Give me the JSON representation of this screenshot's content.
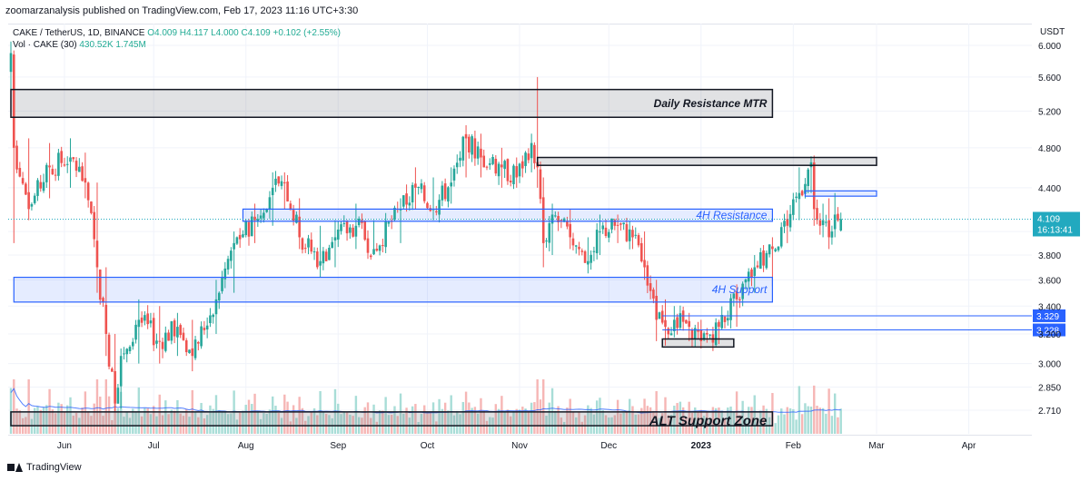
{
  "header": {
    "publisher_line": "zoomarzanalysis published on TradingView.com, Feb 17, 2023 11:16 UTC+3:30"
  },
  "legend": {
    "symbol": "CAKE / TetherUS, 1D, BINANCE",
    "open": "O4.009",
    "high": "H4.117",
    "low": "L4.000",
    "close": "C4.109",
    "change": "+0.102 (+2.55%)",
    "volume_label": "Vol · CAKE (30)",
    "volume_value": "430.52K",
    "volume_ma": "1.745M"
  },
  "footer": {
    "brand": "TradingView"
  },
  "colors": {
    "up": "#26a69a",
    "down": "#ef5350",
    "vol_up": "#a8ddd7",
    "vol_down": "#f6b6b5",
    "zone_blue": "#2962ff",
    "zone_blue_fill": "rgba(41,98,255,0.12)",
    "zone_gray_fill": "rgba(120,123,134,0.22)",
    "vol_ma": "#2962ff",
    "price_tag": "#22a9bf",
    "level_tag": "#2962ff"
  },
  "chart_data": {
    "type": "candlestick",
    "title": "CAKE / TetherUS, 1D, BINANCE",
    "y_axis_unit": "USDT",
    "y_scale": "log",
    "y_ticks": [
      6.0,
      5.6,
      5.2,
      4.8,
      4.4,
      4.0,
      3.8,
      3.6,
      3.4,
      3.2,
      3.0,
      2.85,
      2.71
    ],
    "y_tick_labels": [
      "6.000",
      "5.600",
      "5.200",
      "4.800",
      "4.400",
      "4.000",
      "3.800",
      "3.600",
      "3.400",
      "3.200",
      "3.000",
      "2.850",
      "2.710"
    ],
    "x_axis_labels": [
      "Jun",
      "Jul",
      "Aug",
      "Sep",
      "Oct",
      "Nov",
      "Dec",
      "2023",
      "Feb",
      "Mar",
      "Apr"
    ],
    "x_axis_dates": [
      "2022-06-01",
      "2022-07-01",
      "2022-08-01",
      "2022-09-01",
      "2022-10-01",
      "2022-11-01",
      "2022-12-01",
      "2023-01-01",
      "2023-02-01",
      "2023-03-01",
      "2023-04-01"
    ],
    "current_price": {
      "value": 4.109,
      "label": "4.109",
      "countdown": "16:13:41"
    },
    "price_levels": [
      {
        "value": 3.329,
        "label": "3.329"
      },
      {
        "value": 3.228,
        "label": "3.228"
      }
    ],
    "zones": [
      {
        "name": "Daily Resistance MTR",
        "kind": "gray",
        "start": "2022-05-14",
        "end": "2023-01-25",
        "top": 5.45,
        "bottom": 5.13
      },
      {
        "name": "",
        "kind": "gray",
        "start": "2022-11-07",
        "end": "2023-03-01",
        "top": 4.7,
        "bottom": 4.62
      },
      {
        "name": "",
        "kind": "blue",
        "start": "2023-02-05",
        "end": "2023-03-01",
        "top": 4.37,
        "bottom": 4.32
      },
      {
        "name": "4H Resistance",
        "kind": "blue",
        "start": "2022-07-31",
        "end": "2023-01-25",
        "top": 4.2,
        "bottom": 4.09
      },
      {
        "name": "4H Support",
        "kind": "blue",
        "start": "2022-05-15",
        "end": "2023-01-25",
        "top": 3.62,
        "bottom": 3.43
      },
      {
        "name": "",
        "kind": "gray",
        "start": "2022-12-19",
        "end": "2023-01-12",
        "top": 3.165,
        "bottom": 3.11
      },
      {
        "name": "ALT Support Zone",
        "kind": "gray",
        "start": "2022-05-14",
        "end": "2023-01-25",
        "top": 2.7,
        "bottom": 2.62
      }
    ],
    "anchors": [
      {
        "date": "2022-05-14",
        "close": 5.9,
        "high": 6.05,
        "low": 5.4
      },
      {
        "date": "2022-05-15",
        "close": 4.8,
        "high": 5.9,
        "low": 3.9
      },
      {
        "date": "2022-05-20",
        "close": 4.2,
        "high": 4.9,
        "low": 4.1
      },
      {
        "date": "2022-05-27",
        "close": 4.6,
        "high": 4.85,
        "low": 4.3
      },
      {
        "date": "2022-06-03",
        "close": 4.7,
        "high": 4.9,
        "low": 4.4
      },
      {
        "date": "2022-06-08",
        "close": 4.45,
        "high": 4.75,
        "low": 4.3
      },
      {
        "date": "2022-06-12",
        "close": 3.7,
        "high": 4.45,
        "low": 3.5
      },
      {
        "date": "2022-06-15",
        "close": 3.2,
        "high": 3.7,
        "low": 3.05
      },
      {
        "date": "2022-06-18",
        "close": 2.75,
        "high": 3.2,
        "low": 2.7
      },
      {
        "date": "2022-06-20",
        "close": 3.05,
        "high": 3.1,
        "low": 2.72
      },
      {
        "date": "2022-06-26",
        "close": 3.3,
        "high": 3.45,
        "low": 3.0
      },
      {
        "date": "2022-07-03",
        "close": 3.15,
        "high": 3.4,
        "low": 3.0
      },
      {
        "date": "2022-07-09",
        "close": 3.25,
        "high": 3.35,
        "low": 3.05
      },
      {
        "date": "2022-07-14",
        "close": 3.05,
        "high": 3.3,
        "low": 2.95
      },
      {
        "date": "2022-07-22",
        "close": 3.45,
        "high": 3.6,
        "low": 3.2
      },
      {
        "date": "2022-07-28",
        "close": 3.9,
        "high": 4.0,
        "low": 3.5
      },
      {
        "date": "2022-08-04",
        "close": 4.1,
        "high": 4.25,
        "low": 3.9
      },
      {
        "date": "2022-08-10",
        "close": 4.4,
        "high": 4.55,
        "low": 4.05
      },
      {
        "date": "2022-08-14",
        "close": 4.45,
        "high": 4.55,
        "low": 4.2
      },
      {
        "date": "2022-08-19",
        "close": 3.95,
        "high": 4.3,
        "low": 3.85
      },
      {
        "date": "2022-08-26",
        "close": 3.75,
        "high": 4.05,
        "low": 3.62
      },
      {
        "date": "2022-08-31",
        "close": 3.95,
        "high": 4.1,
        "low": 3.7
      },
      {
        "date": "2022-09-07",
        "close": 4.05,
        "high": 4.25,
        "low": 3.85
      },
      {
        "date": "2022-09-13",
        "close": 3.85,
        "high": 4.1,
        "low": 3.8
      },
      {
        "date": "2022-09-22",
        "close": 4.2,
        "high": 4.3,
        "low": 3.9
      },
      {
        "date": "2022-09-27",
        "close": 4.4,
        "high": 4.6,
        "low": 4.2
      },
      {
        "date": "2022-10-03",
        "close": 4.2,
        "high": 4.5,
        "low": 4.1
      },
      {
        "date": "2022-10-09",
        "close": 4.45,
        "high": 4.6,
        "low": 4.25
      },
      {
        "date": "2022-10-14",
        "close": 4.9,
        "high": 5.0,
        "low": 4.5
      },
      {
        "date": "2022-10-19",
        "close": 4.7,
        "high": 4.95,
        "low": 4.5
      },
      {
        "date": "2022-10-26",
        "close": 4.6,
        "high": 4.8,
        "low": 4.4
      },
      {
        "date": "2022-10-31",
        "close": 4.5,
        "high": 4.7,
        "low": 4.4
      },
      {
        "date": "2022-11-05",
        "close": 4.85,
        "high": 4.95,
        "low": 4.55
      },
      {
        "date": "2022-11-07",
        "close": 4.6,
        "high": 5.6,
        "low": 4.4
      },
      {
        "date": "2022-11-09",
        "close": 3.9,
        "high": 4.5,
        "low": 3.7
      },
      {
        "date": "2022-11-12",
        "close": 4.15,
        "high": 4.25,
        "low": 3.8
      },
      {
        "date": "2022-11-18",
        "close": 3.95,
        "high": 4.2,
        "low": 3.85
      },
      {
        "date": "2022-11-24",
        "close": 3.75,
        "high": 3.95,
        "low": 3.7
      },
      {
        "date": "2022-11-28",
        "close": 4.0,
        "high": 4.15,
        "low": 3.8
      },
      {
        "date": "2022-12-04",
        "close": 4.05,
        "high": 4.15,
        "low": 3.9
      },
      {
        "date": "2022-12-09",
        "close": 3.95,
        "high": 4.05,
        "low": 3.85
      },
      {
        "date": "2022-12-13",
        "close": 3.7,
        "high": 4.0,
        "low": 3.6
      },
      {
        "date": "2022-12-17",
        "close": 3.3,
        "high": 3.6,
        "low": 3.15
      },
      {
        "date": "2022-12-20",
        "close": 3.25,
        "high": 3.45,
        "low": 3.12
      },
      {
        "date": "2022-12-23",
        "close": 3.3,
        "high": 3.4,
        "low": 3.2
      },
      {
        "date": "2022-12-28",
        "close": 3.25,
        "high": 3.35,
        "low": 3.15
      },
      {
        "date": "2023-01-01",
        "close": 3.15,
        "high": 3.3,
        "low": 3.1
      },
      {
        "date": "2023-01-07",
        "close": 3.25,
        "high": 3.3,
        "low": 3.13
      },
      {
        "date": "2023-01-13",
        "close": 3.45,
        "high": 3.5,
        "low": 3.25
      },
      {
        "date": "2023-01-19",
        "close": 3.7,
        "high": 3.8,
        "low": 3.5
      },
      {
        "date": "2023-01-25",
        "close": 3.85,
        "high": 3.95,
        "low": 3.55
      },
      {
        "date": "2023-01-30",
        "close": 4.05,
        "high": 4.15,
        "low": 3.9
      },
      {
        "date": "2023-02-03",
        "close": 4.35,
        "high": 4.6,
        "low": 4.1
      },
      {
        "date": "2023-02-07",
        "close": 4.65,
        "high": 4.7,
        "low": 4.35
      },
      {
        "date": "2023-02-08",
        "close": 4.2,
        "high": 4.72,
        "low": 4.05
      },
      {
        "date": "2023-02-11",
        "close": 4.1,
        "high": 4.25,
        "low": 3.95
      },
      {
        "date": "2023-02-13",
        "close": 3.95,
        "high": 4.3,
        "low": 3.85
      },
      {
        "date": "2023-02-15",
        "close": 4.15,
        "high": 4.35,
        "low": 3.95
      },
      {
        "date": "2023-02-17",
        "close": 4.109,
        "high": 4.117,
        "low": 4.0
      }
    ]
  }
}
